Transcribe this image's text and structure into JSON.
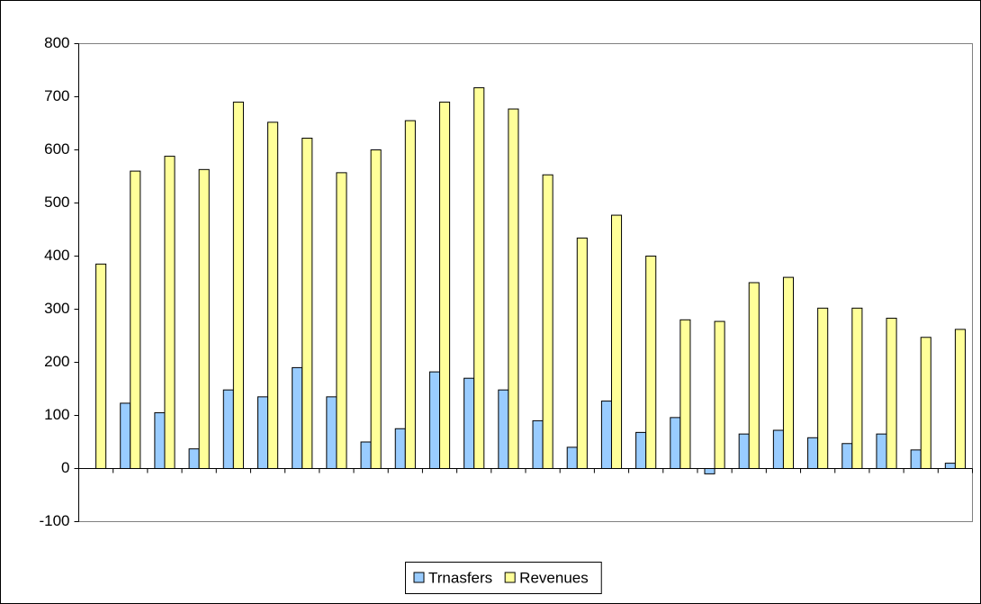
{
  "chart_data": {
    "type": "bar",
    "categories": [
      null,
      null,
      null,
      null,
      null,
      null,
      null,
      null,
      null,
      null,
      null,
      null,
      null,
      null,
      null,
      null,
      null,
      null,
      null,
      null,
      null,
      null,
      null,
      null,
      null,
      null
    ],
    "series": [
      {
        "name": "Trnasfers",
        "color": "#99ccff",
        "values": [
          0,
          123,
          105,
          37,
          148,
          135,
          190,
          135,
          50,
          75,
          182,
          170,
          148,
          90,
          40,
          127,
          68,
          96,
          -10,
          65,
          72,
          58,
          47,
          65,
          35,
          10
        ]
      },
      {
        "name": "Revenues",
        "color": "#ffff99",
        "values": [
          385,
          560,
          588,
          563,
          690,
          652,
          622,
          557,
          600,
          655,
          690,
          717,
          677,
          553,
          434,
          477,
          400,
          280,
          277,
          350,
          360,
          302,
          302,
          283,
          247,
          262
        ]
      }
    ],
    "ylim": [
      -100,
      800
    ],
    "yticks": [
      -100,
      0,
      100,
      200,
      300,
      400,
      500,
      600,
      700,
      800
    ],
    "grid": false,
    "legend": "bottom"
  }
}
